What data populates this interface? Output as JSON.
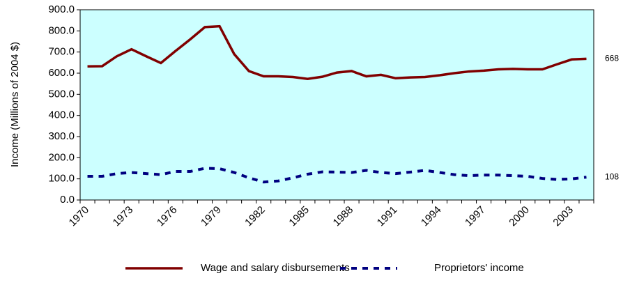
{
  "chart_data": {
    "type": "line",
    "y_label": "Income (Millions of 2004 $)",
    "categories": [
      "1970",
      null,
      null,
      "1973",
      null,
      null,
      "1976",
      null,
      null,
      "1979",
      null,
      null,
      "1982",
      null,
      null,
      "1985",
      null,
      null,
      "1988",
      null,
      null,
      "1991",
      null,
      null,
      "1994",
      null,
      null,
      "1997",
      null,
      null,
      "2000",
      null,
      null,
      "2003",
      null
    ],
    "series": [
      {
        "name": "Wage and salary disbursements",
        "color": "#800000",
        "dash": "solid",
        "values": [
          632,
          633,
          680,
          713,
          680,
          648,
          705,
          760,
          818,
          822,
          690,
          610,
          585,
          585,
          582,
          573,
          583,
          603,
          610,
          585,
          592,
          576,
          580,
          582,
          590,
          600,
          608,
          612,
          618,
          620,
          618,
          618,
          642,
          665,
          668
        ]
      },
      {
        "name": "Proprietors' income",
        "color": "#000080",
        "dash": "dashed",
        "values": [
          112,
          112,
          125,
          130,
          125,
          120,
          135,
          135,
          150,
          148,
          130,
          105,
          85,
          90,
          105,
          122,
          133,
          132,
          130,
          140,
          130,
          125,
          132,
          140,
          130,
          120,
          115,
          118,
          118,
          115,
          112,
          102,
          97,
          100,
          108
        ]
      }
    ],
    "ylim": [
      0,
      900
    ],
    "yticks": [
      {
        "value": 0,
        "label": "0.0"
      },
      {
        "value": 100,
        "label": "100.0"
      },
      {
        "value": 200,
        "label": "200.0"
      },
      {
        "value": 300,
        "label": "300.0"
      },
      {
        "value": 400,
        "label": "400.0"
      },
      {
        "value": 500,
        "label": "500.0"
      },
      {
        "value": 600,
        "label": "600.0"
      },
      {
        "value": 700,
        "label": "700.0"
      },
      {
        "value": 800,
        "label": "800.0"
      },
      {
        "value": 900,
        "label": "900.0"
      }
    ],
    "plot_background": "#ccffff",
    "legend": "bottom"
  }
}
